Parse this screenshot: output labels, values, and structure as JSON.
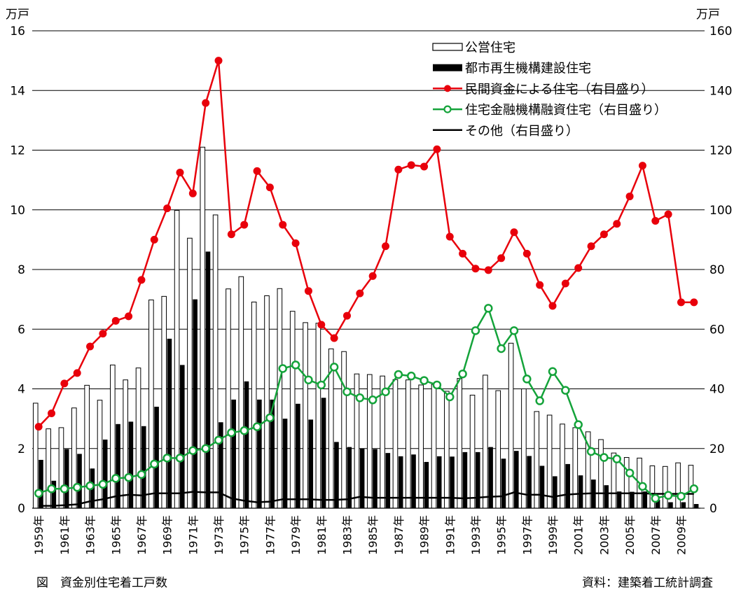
{
  "units": {
    "left": "万戸",
    "right": "万戸"
  },
  "caption": "図　資金別住宅着工戸数",
  "source": "資料：建築着工統計調査",
  "colors": {
    "red": "#e8000b",
    "green": "#14a33a",
    "black": "#000000"
  },
  "chart_data": {
    "type": "bar",
    "years": [
      1959,
      1960,
      1961,
      1962,
      1963,
      1964,
      1965,
      1966,
      1967,
      1968,
      1969,
      1970,
      1971,
      1972,
      1973,
      1974,
      1975,
      1976,
      1977,
      1978,
      1979,
      1980,
      1981,
      1982,
      1983,
      1984,
      1985,
      1986,
      1987,
      1988,
      1989,
      1990,
      1991,
      1992,
      1993,
      1994,
      1995,
      1996,
      1997,
      1998,
      1999,
      2000,
      2001,
      2002,
      2003,
      2004,
      2005,
      2006,
      2007,
      2008,
      2009,
      2010
    ],
    "x_tick_labels": [
      "1959年",
      "1961年",
      "1963年",
      "1965年",
      "1967年",
      "1969年",
      "1971年",
      "1973年",
      "1975年",
      "1977年",
      "1979年",
      "1981年",
      "1983年",
      "1985年",
      "1987年",
      "1989年",
      "1991年",
      "1993年",
      "1995年",
      "1997年",
      "1999年",
      "2001年",
      "2003年",
      "2005年",
      "2007年",
      "2009年"
    ],
    "left_axis": {
      "unit": "万戸",
      "ylim": [
        0,
        16
      ],
      "ticks": [
        "0",
        "2",
        "4",
        "6",
        "8",
        "10",
        "12",
        "14",
        "16"
      ]
    },
    "right_axis": {
      "unit": "万戸",
      "ylim": [
        0,
        160
      ],
      "ticks": [
        "0",
        "20",
        "40",
        "60",
        "80",
        "100",
        "120",
        "140",
        "160"
      ]
    },
    "grid": true,
    "legend_position": "top-right",
    "series": [
      {
        "name": "公営住宅",
        "kind": "bar",
        "axis": "left",
        "style": "hollow",
        "values": [
          3.52,
          2.66,
          2.7,
          3.36,
          4.12,
          3.62,
          4.8,
          4.3,
          4.7,
          6.98,
          7.1,
          9.98,
          9.05,
          12.1,
          9.83,
          7.35,
          7.76,
          6.91,
          7.12,
          7.36,
          6.6,
          6.22,
          6.2,
          5.34,
          5.25,
          4.5,
          4.48,
          4.43,
          4.31,
          4.3,
          4.13,
          4.15,
          3.92,
          4.35,
          3.79,
          4.46,
          3.94,
          5.53,
          4.0,
          3.24,
          3.12,
          2.82,
          2.7,
          2.56,
          2.3,
          1.85,
          1.7,
          1.68,
          1.42,
          1.4,
          1.52,
          1.44
        ]
      },
      {
        "name": "都市再生機構建設住宅",
        "kind": "bar",
        "axis": "left",
        "style": "solid",
        "values": [
          1.62,
          0.92,
          1.98,
          1.82,
          1.33,
          2.3,
          2.82,
          2.9,
          2.75,
          3.4,
          5.68,
          4.8,
          7.0,
          8.6,
          2.88,
          3.64,
          4.25,
          3.64,
          3.64,
          3.0,
          3.5,
          2.97,
          3.7,
          2.22,
          2.05,
          2.0,
          1.98,
          1.85,
          1.74,
          1.8,
          1.55,
          1.74,
          1.73,
          1.88,
          1.88,
          2.05,
          1.66,
          1.92,
          1.75,
          1.42,
          1.07,
          1.48,
          1.1,
          0.96,
          0.77,
          0.56,
          0.55,
          0.56,
          0.28,
          0.2,
          0.2,
          0.14
        ]
      },
      {
        "name": "民間資金による住宅（右目盛り）",
        "kind": "line",
        "axis": "right",
        "marker": "filled-circle",
        "values": [
          27.3,
          31.8,
          41.8,
          45.3,
          54.2,
          58.5,
          62.8,
          64.3,
          76.5,
          90.0,
          100.5,
          112.5,
          105.5,
          135.8,
          150.0,
          91.8,
          95.0,
          113.0,
          107.5,
          95.0,
          88.8,
          72.8,
          61.5,
          57.0,
          64.5,
          72.0,
          77.8,
          87.8,
          113.5,
          115.0,
          114.5,
          120.3,
          91.0,
          85.3,
          80.3,
          79.8,
          83.8,
          92.5,
          85.3,
          74.8,
          67.8,
          75.3,
          80.5,
          87.8,
          91.8,
          95.3,
          104.5,
          114.8,
          96.3,
          98.5,
          69.0,
          69.0
        ]
      },
      {
        "name": "住宅金融機構融資住宅（右目盛り）",
        "kind": "line",
        "axis": "right",
        "marker": "hollow-circle",
        "values": [
          5.0,
          6.5,
          6.5,
          7.0,
          7.5,
          8.0,
          10.0,
          10.3,
          11.3,
          14.8,
          16.8,
          16.8,
          19.3,
          20.0,
          22.8,
          25.3,
          26.0,
          27.3,
          30.3,
          46.8,
          48.0,
          43.0,
          41.3,
          47.3,
          39.0,
          37.0,
          36.3,
          39.0,
          44.8,
          44.3,
          42.8,
          41.3,
          37.3,
          45.0,
          59.5,
          67.0,
          53.5,
          59.5,
          43.3,
          36.0,
          45.8,
          39.5,
          28.0,
          19.0,
          17.0,
          16.5,
          11.8,
          7.3,
          3.3,
          4.3,
          4.0,
          6.5
        ]
      },
      {
        "name": "その他（右目盛り）",
        "kind": "line",
        "axis": "right",
        "marker": "none",
        "values": [
          0.8,
          0.8,
          1.0,
          1.3,
          2.3,
          3.0,
          4.0,
          4.5,
          4.3,
          5.0,
          5.0,
          5.0,
          5.5,
          5.3,
          5.3,
          3.3,
          2.5,
          2.0,
          2.2,
          3.0,
          3.0,
          3.0,
          2.8,
          2.8,
          3.0,
          3.8,
          3.5,
          3.5,
          3.5,
          3.5,
          3.5,
          3.5,
          3.5,
          3.3,
          3.5,
          3.8,
          4.0,
          5.3,
          4.5,
          4.5,
          3.8,
          4.5,
          4.8,
          5.0,
          5.0,
          5.0,
          5.0,
          5.0,
          4.8,
          4.8,
          4.8,
          4.8
        ]
      }
    ]
  }
}
